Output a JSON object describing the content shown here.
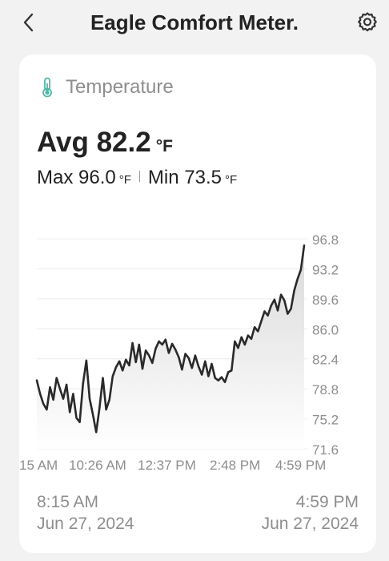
{
  "header": {
    "title": "Eagle Comfort Meter."
  },
  "sensor": {
    "name": "Temperature",
    "icon": "thermometer-icon",
    "accent_color": "#4fb8a9"
  },
  "stats": {
    "avg_label": "Avg",
    "avg_value": "82.2",
    "unit": "°F",
    "max_label": "Max",
    "max_value": "96.0",
    "min_label": "Min",
    "min_value": "73.5"
  },
  "chart_data": {
    "type": "area",
    "y_ticks": [
      "96.8",
      "93.2",
      "89.6",
      "86.0",
      "82.4",
      "78.8",
      "75.2",
      "71.6"
    ],
    "ylim": [
      71.6,
      96.8
    ],
    "x_tick_labels": [
      "15 AM",
      "10:26 AM",
      "12:37 PM",
      "2:48 PM",
      "4:59 PM"
    ],
    "grid": true,
    "series": [
      {
        "values": [
          79.8,
          78.2,
          77.0,
          76.3,
          79.0,
          77.5,
          80.1,
          78.8,
          77.6,
          79.3,
          76.0,
          78.2,
          75.3,
          74.8,
          79.4,
          82.2,
          77.6,
          75.7,
          73.6,
          76.5,
          80.1,
          76.3,
          77.5,
          80.3,
          81.4,
          82.1,
          81.0,
          82.3,
          81.6,
          84.3,
          82.0,
          84.1,
          81.2,
          83.4,
          82.8,
          81.9,
          83.6,
          84.5,
          84.1,
          84.7,
          83.1,
          84.2,
          83.5,
          82.6,
          81.1,
          83.0,
          82.5,
          81.3,
          82.8,
          81.5,
          80.5,
          82.1,
          80.3,
          81.8,
          80.1,
          79.8,
          80.2,
          79.6,
          80.8,
          81.0,
          84.5,
          83.7,
          85.0,
          84.1,
          85.2,
          84.8,
          86.2,
          85.7,
          86.9,
          88.1,
          87.6,
          88.8,
          89.5,
          88.2,
          90.1,
          89.4,
          87.8,
          88.4,
          90.6,
          92.0,
          93.1,
          96.0
        ]
      }
    ],
    "line_color": "#2a2a2a",
    "fill_color": "#e6e6e6"
  },
  "time_range": {
    "start_time": "8:15 AM",
    "start_date": "Jun 27, 2024",
    "end_time": "4:59 PM",
    "end_date": "Jun 27, 2024"
  }
}
